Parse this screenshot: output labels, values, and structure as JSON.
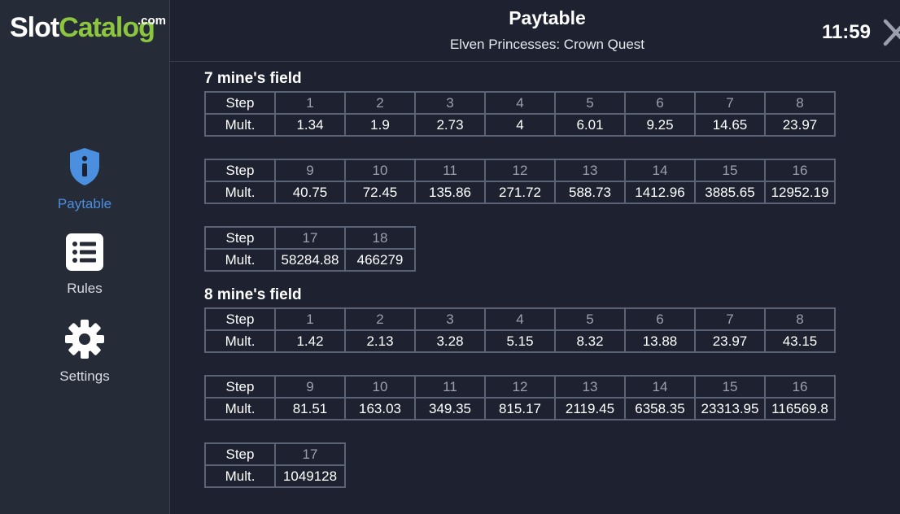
{
  "logo": {
    "part1": "Slot",
    "part2": "Catalog",
    "suffix": ".com"
  },
  "header": {
    "title": "Paytable",
    "subtitle": "Elven Princesses: Crown Quest",
    "time": "11:59",
    "close_icon": "close-icon"
  },
  "sidebar": {
    "items": [
      {
        "label": "Paytable",
        "icon": "shield-info-icon",
        "active": true
      },
      {
        "label": "Rules",
        "icon": "list-icon",
        "active": false
      },
      {
        "label": "Settings",
        "icon": "gear-icon",
        "active": false
      }
    ]
  },
  "colors": {
    "accent": "#4a8fe0",
    "logo_green": "#8cc63f",
    "background": "#1e2230"
  },
  "sections": [
    {
      "title": "7 mine's field",
      "row_labels": {
        "step": "Step",
        "mult": "Mult."
      },
      "tables": [
        {
          "steps": [
            "1",
            "2",
            "3",
            "4",
            "5",
            "6",
            "7",
            "8"
          ],
          "mults": [
            "1.34",
            "1.9",
            "2.73",
            "4",
            "6.01",
            "9.25",
            "14.65",
            "23.97"
          ]
        },
        {
          "steps": [
            "9",
            "10",
            "11",
            "12",
            "13",
            "14",
            "15",
            "16"
          ],
          "mults": [
            "40.75",
            "72.45",
            "135.86",
            "271.72",
            "588.73",
            "1412.96",
            "3885.65",
            "12952.19"
          ]
        },
        {
          "steps": [
            "17",
            "18"
          ],
          "mults": [
            "58284.88",
            "466279"
          ]
        }
      ]
    },
    {
      "title": "8 mine's field",
      "row_labels": {
        "step": "Step",
        "mult": "Mult."
      },
      "tables": [
        {
          "steps": [
            "1",
            "2",
            "3",
            "4",
            "5",
            "6",
            "7",
            "8"
          ],
          "mults": [
            "1.42",
            "2.13",
            "3.28",
            "5.15",
            "8.32",
            "13.88",
            "23.97",
            "43.15"
          ]
        },
        {
          "steps": [
            "9",
            "10",
            "11",
            "12",
            "13",
            "14",
            "15",
            "16"
          ],
          "mults": [
            "81.51",
            "163.03",
            "349.35",
            "815.17",
            "2119.45",
            "6358.35",
            "23313.95",
            "116569.8"
          ]
        },
        {
          "steps": [
            "17"
          ],
          "mults": [
            "1049128"
          ]
        }
      ]
    }
  ]
}
